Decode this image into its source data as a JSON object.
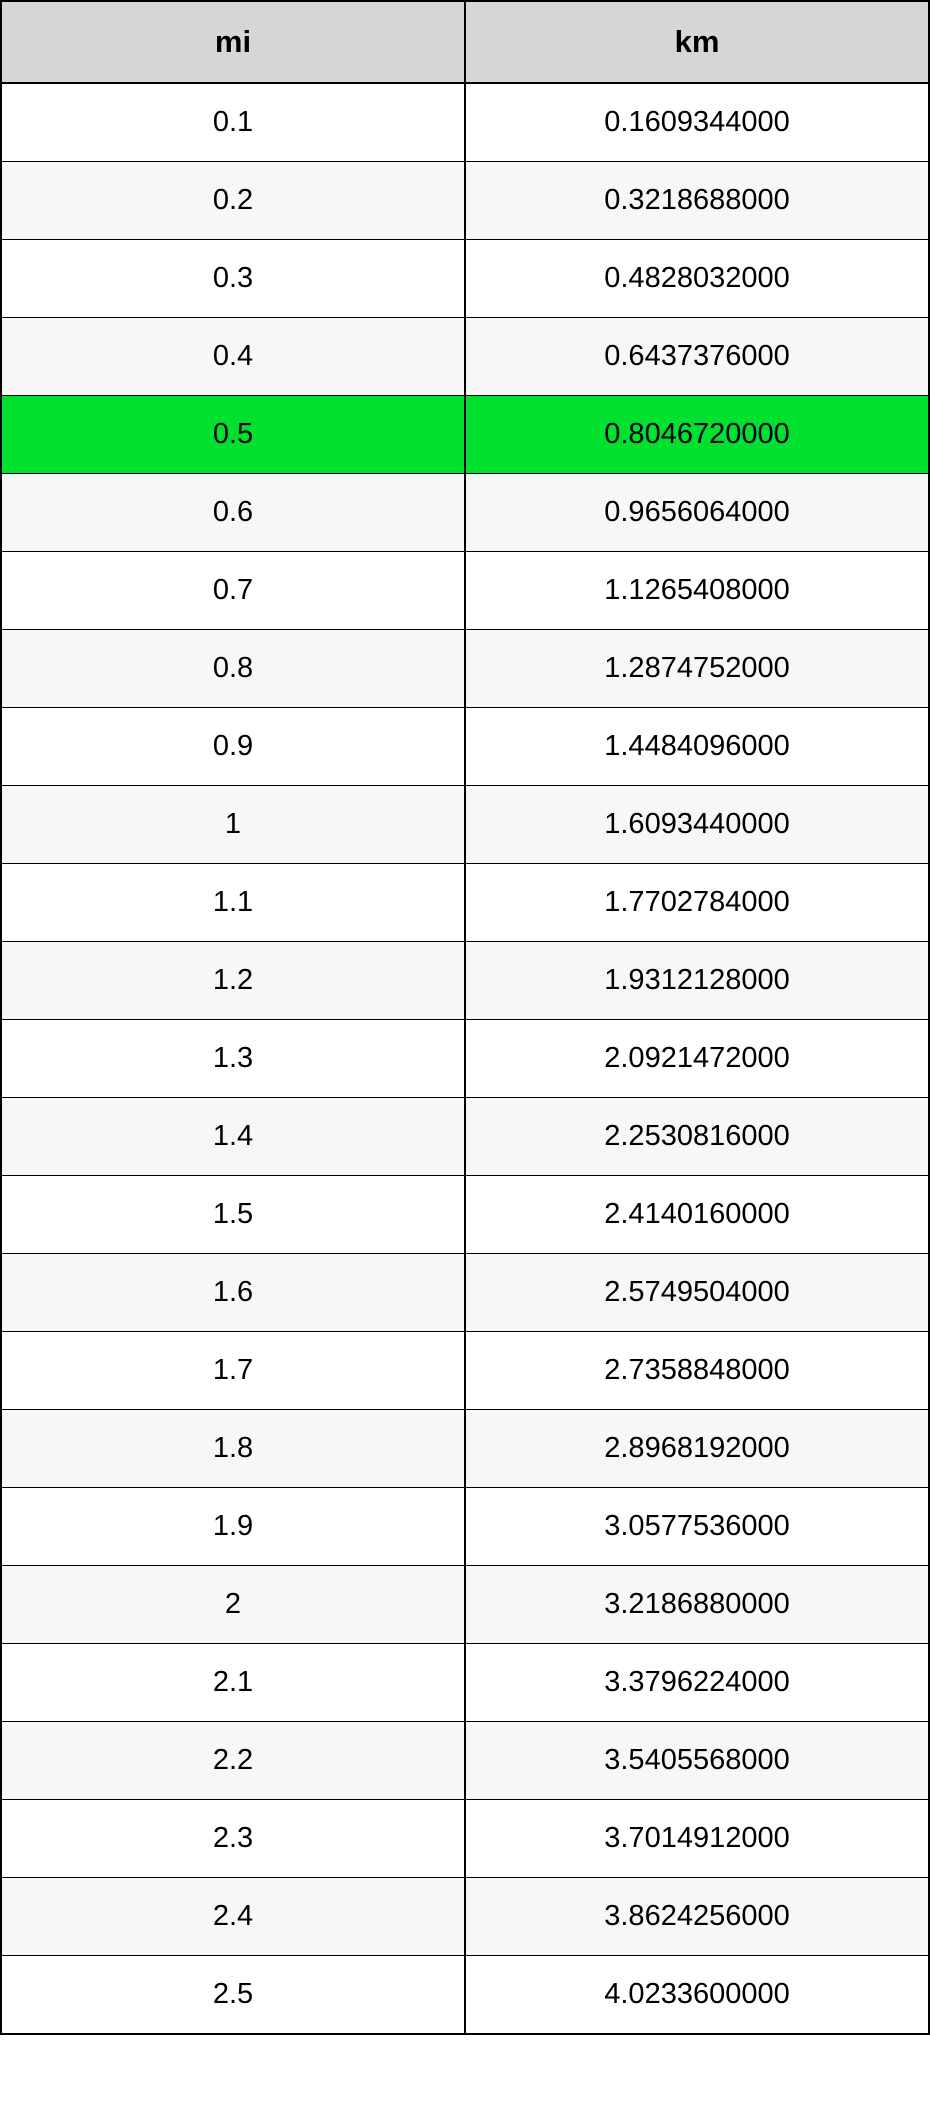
{
  "table": {
    "type": "table",
    "columns": [
      "mi",
      "km"
    ],
    "header_bg": "#d6d6d6",
    "header_fontsize": 31,
    "header_fontweight": "bold",
    "cell_fontsize": 29,
    "border_color": "#000000",
    "alt_row_bg": "#f7f7f7",
    "highlight_bg": "#00e12f",
    "highlight_index": 4,
    "rows": [
      {
        "mi": "0.1",
        "km": "0.1609344000",
        "alt": false
      },
      {
        "mi": "0.2",
        "km": "0.3218688000",
        "alt": true
      },
      {
        "mi": "0.3",
        "km": "0.4828032000",
        "alt": false
      },
      {
        "mi": "0.4",
        "km": "0.6437376000",
        "alt": true
      },
      {
        "mi": "0.5",
        "km": "0.8046720000",
        "alt": false
      },
      {
        "mi": "0.6",
        "km": "0.9656064000",
        "alt": true
      },
      {
        "mi": "0.7",
        "km": "1.1265408000",
        "alt": false
      },
      {
        "mi": "0.8",
        "km": "1.2874752000",
        "alt": true
      },
      {
        "mi": "0.9",
        "km": "1.4484096000",
        "alt": false
      },
      {
        "mi": "1",
        "km": "1.6093440000",
        "alt": true
      },
      {
        "mi": "1.1",
        "km": "1.7702784000",
        "alt": false
      },
      {
        "mi": "1.2",
        "km": "1.9312128000",
        "alt": true
      },
      {
        "mi": "1.3",
        "km": "2.0921472000",
        "alt": false
      },
      {
        "mi": "1.4",
        "km": "2.2530816000",
        "alt": true
      },
      {
        "mi": "1.5",
        "km": "2.4140160000",
        "alt": false
      },
      {
        "mi": "1.6",
        "km": "2.5749504000",
        "alt": true
      },
      {
        "mi": "1.7",
        "km": "2.7358848000",
        "alt": false
      },
      {
        "mi": "1.8",
        "km": "2.8968192000",
        "alt": true
      },
      {
        "mi": "1.9",
        "km": "3.0577536000",
        "alt": false
      },
      {
        "mi": "2",
        "km": "3.2186880000",
        "alt": true
      },
      {
        "mi": "2.1",
        "km": "3.3796224000",
        "alt": false
      },
      {
        "mi": "2.2",
        "km": "3.5405568000",
        "alt": true
      },
      {
        "mi": "2.3",
        "km": "3.7014912000",
        "alt": false
      },
      {
        "mi": "2.4",
        "km": "3.8624256000",
        "alt": true
      },
      {
        "mi": "2.5",
        "km": "4.0233600000",
        "alt": false
      }
    ]
  }
}
